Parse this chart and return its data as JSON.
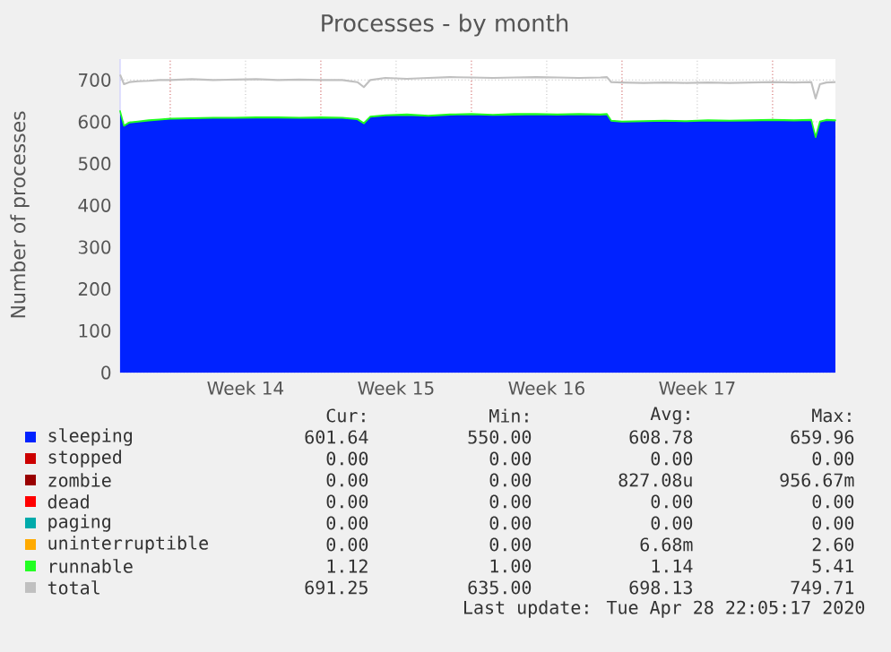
{
  "chart_data": {
    "type": "area",
    "title": "Processes - by month",
    "ylabel": "Number of processes",
    "stacked": true,
    "grid": true,
    "legend": "bottom",
    "x": [
      "2020-03-26T16:05",
      "2020-03-26T20:24",
      "2020-03-27T02:24",
      "2020-03-27T12:00",
      "2020-03-28",
      "2020-03-28T12:00",
      "2020-03-29",
      "2020-03-30",
      "2020-03-31",
      "2020-04-01",
      "2020-04-02",
      "2020-04-03",
      "2020-04-04",
      "2020-04-05",
      "2020-04-06",
      "2020-04-06T16:48",
      "2020-04-07",
      "2020-04-07T07:12",
      "2020-04-08",
      "2020-04-09",
      "2020-04-10",
      "2020-04-11",
      "2020-04-12",
      "2020-04-13",
      "2020-04-14",
      "2020-04-15",
      "2020-04-16",
      "2020-04-17",
      "2020-04-18",
      "2020-04-18T07:12",
      "2020-04-18T12:00",
      "2020-04-19",
      "2020-04-20",
      "2020-04-21",
      "2020-04-22",
      "2020-04-23",
      "2020-04-24",
      "2020-04-25",
      "2020-04-26",
      "2020-04-27",
      "2020-04-27T19:12",
      "2020-04-28",
      "2020-04-28T04:48",
      "2020-04-28T12:00",
      "2020-04-28T22:05"
    ],
    "xlim": [
      "2020-03-26T16:05",
      "2020-04-28T22:05"
    ],
    "xticks": [
      {
        "value": "2020-03-29",
        "label": null
      },
      {
        "value": "2020-04-01T12:00",
        "label": "Week 14"
      },
      {
        "value": "2020-04-05",
        "label": null
      },
      {
        "value": "2020-04-08T12:00",
        "label": "Week 15"
      },
      {
        "value": "2020-04-12",
        "label": null
      },
      {
        "value": "2020-04-15T12:00",
        "label": "Week 16"
      },
      {
        "value": "2020-04-19",
        "label": null
      },
      {
        "value": "2020-04-22T12:00",
        "label": "Week 17"
      },
      {
        "value": "2020-04-26",
        "label": null
      }
    ],
    "ylim": [
      0,
      750
    ],
    "yticks": [
      0,
      100,
      200,
      300,
      400,
      500,
      600,
      700
    ],
    "series": [
      {
        "name": "sleeping",
        "color": "#0022ff",
        "values": [
          625,
          590,
          598,
          600,
          603,
          605,
          607,
          608,
          609,
          609,
          610,
          610,
          609,
          610,
          609,
          606,
          596,
          612,
          615,
          616,
          614,
          617,
          618,
          616,
          617,
          618,
          617,
          618,
          617,
          618,
          602,
          600,
          601,
          602,
          601,
          603,
          602,
          603,
          604,
          603,
          604,
          563,
          600,
          604,
          603
        ]
      },
      {
        "name": "stopped",
        "color": "#cc0000",
        "values": [
          null,
          null,
          null,
          null,
          null,
          null,
          null,
          null,
          null,
          null,
          null,
          null,
          null,
          null,
          null,
          null,
          null,
          null,
          null,
          null,
          null,
          null,
          null,
          null,
          null,
          null,
          null,
          null,
          null,
          null,
          null,
          null,
          null,
          null,
          null,
          null,
          null,
          null,
          null,
          null,
          null,
          null,
          null,
          null,
          null
        ]
      },
      {
        "name": "zombie",
        "color": "#990000",
        "values": [
          null,
          null,
          null,
          null,
          null,
          null,
          null,
          null,
          null,
          null,
          null,
          null,
          null,
          null,
          null,
          null,
          null,
          null,
          null,
          null,
          null,
          null,
          null,
          null,
          null,
          null,
          null,
          null,
          null,
          null,
          null,
          null,
          null,
          null,
          null,
          null,
          null,
          null,
          null,
          null,
          null,
          null,
          null,
          null,
          null
        ]
      },
      {
        "name": "dead",
        "color": "#ff0000",
        "values": [
          null,
          null,
          null,
          null,
          null,
          null,
          null,
          null,
          null,
          null,
          null,
          null,
          null,
          null,
          null,
          null,
          null,
          null,
          null,
          null,
          null,
          null,
          null,
          null,
          null,
          null,
          null,
          null,
          null,
          null,
          null,
          null,
          null,
          null,
          null,
          null,
          null,
          null,
          null,
          null,
          null,
          null,
          null,
          null,
          null
        ]
      },
      {
        "name": "paging",
        "color": "#00aaaa",
        "values": [
          null,
          null,
          null,
          null,
          null,
          null,
          null,
          null,
          null,
          null,
          null,
          null,
          null,
          null,
          null,
          null,
          null,
          null,
          null,
          null,
          null,
          null,
          null,
          null,
          null,
          null,
          null,
          null,
          null,
          null,
          null,
          null,
          null,
          null,
          null,
          null,
          null,
          null,
          null,
          null,
          null,
          null,
          null,
          null,
          null
        ]
      },
      {
        "name": "uninterruptible",
        "color": "#ffaa00",
        "values": [
          null,
          null,
          null,
          null,
          null,
          null,
          null,
          null,
          null,
          null,
          null,
          null,
          null,
          null,
          null,
          null,
          null,
          null,
          null,
          null,
          null,
          null,
          null,
          null,
          null,
          null,
          null,
          null,
          null,
          null,
          null,
          null,
          null,
          null,
          null,
          null,
          null,
          null,
          null,
          null,
          null,
          null,
          null,
          null,
          null
        ]
      },
      {
        "name": "runnable",
        "color": "#22ff22",
        "values": [
          1,
          1,
          1,
          1,
          1,
          1,
          1,
          1,
          1,
          1,
          1,
          1,
          1,
          1,
          1,
          1,
          1,
          1,
          1,
          2,
          1,
          1,
          1,
          1,
          2,
          1,
          1,
          1,
          1,
          1,
          1,
          1,
          1,
          1,
          1,
          1,
          1,
          1,
          1,
          1,
          1,
          1,
          1,
          1,
          1
        ]
      },
      {
        "name": "total",
        "type": "line",
        "color": "#c0c0c0",
        "values": [
          713,
          690,
          695,
          697,
          698,
          700,
          700,
          702,
          700,
          701,
          702,
          700,
          701,
          700,
          700,
          695,
          683,
          700,
          705,
          703,
          705,
          707,
          706,
          705,
          706,
          707,
          706,
          705,
          706,
          707,
          695,
          694,
          693,
          694,
          693,
          694,
          693,
          694,
          695,
          694,
          695,
          656,
          690,
          694,
          695
        ]
      }
    ],
    "annotations": [
      "Cur:",
      "Min:",
      "Avg:",
      "Max:",
      "601.64",
      "550.00",
      "608.78",
      "659.96",
      "0.00",
      "0.00",
      "0.00",
      "0.00",
      "0.00",
      "0.00",
      "827.08u",
      "956.67m",
      "0.00",
      "0.00",
      "0.00",
      "0.00",
      "0.00",
      "0.00",
      "0.00",
      "0.00",
      "0.00",
      "0.00",
      "6.68m",
      "2.60",
      "1.12",
      "1.00",
      "1.14",
      "5.41",
      "691.25",
      "635.00",
      "698.13",
      "749.71",
      "Last update: Tue Apr 28 22:05:17 2020"
    ]
  }
}
